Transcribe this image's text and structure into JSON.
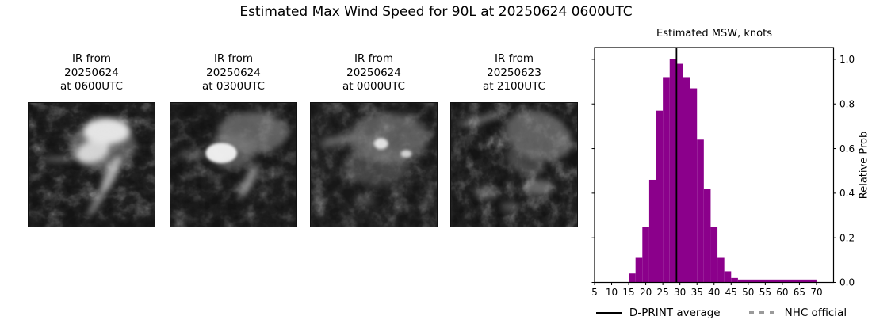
{
  "title": "Estimated Max Wind Speed for 90L at 20250624 0600UTC",
  "panels": [
    {
      "label_lines": [
        "IR from",
        "20250624",
        "at 0600UTC"
      ]
    },
    {
      "label_lines": [
        "IR from",
        "20250624",
        "at 0300UTC"
      ]
    },
    {
      "label_lines": [
        "IR from",
        "20250624",
        "at 0000UTC"
      ]
    },
    {
      "label_lines": [
        "IR from",
        "20250623",
        "at 2100UTC"
      ]
    }
  ],
  "chart_data": {
    "type": "bar",
    "title": "Estimated MSW, knots",
    "xlabel": "",
    "ylabel": "Relative Prob",
    "x_ticks": [
      5,
      10,
      15,
      20,
      25,
      30,
      35,
      40,
      45,
      50,
      55,
      60,
      65,
      70
    ],
    "y_ticks": [
      0,
      0.2,
      0.4,
      0.6,
      0.8,
      1.0
    ],
    "xlim": [
      5,
      75
    ],
    "ylim": [
      0,
      1.053
    ],
    "grid": false,
    "y_axis_side": "right",
    "bar_color": "#8B008B",
    "bin_edges": [
      15,
      17,
      19,
      21,
      23,
      25,
      27,
      29,
      31,
      33,
      35,
      37,
      39,
      41,
      43,
      45,
      47,
      70
    ],
    "bin_heights": [
      0.04,
      0.11,
      0.25,
      0.46,
      0.77,
      0.92,
      1.0,
      0.98,
      0.92,
      0.87,
      0.64,
      0.42,
      0.25,
      0.11,
      0.05,
      0.02,
      0.013
    ],
    "dprint_average_knots": 29,
    "legend": {
      "position": "below",
      "items": [
        {
          "label": "D-PRINT average",
          "color": "#000000",
          "style": "solid"
        },
        {
          "label": "NHC official",
          "color": "#9a9a9a",
          "style": "dashed"
        }
      ]
    }
  }
}
